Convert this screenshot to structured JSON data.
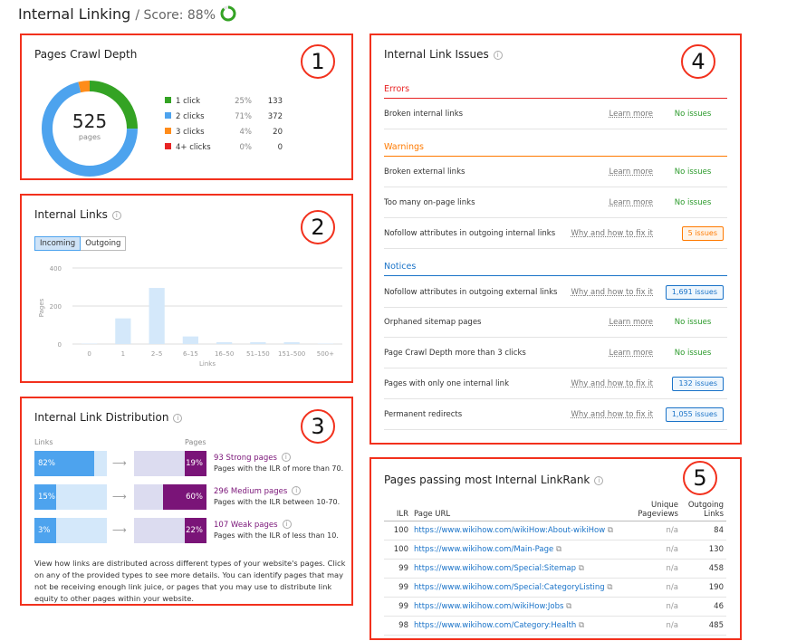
{
  "header": {
    "title": "Internal Linking",
    "score": "/ Score: 88%",
    "score_value": 88
  },
  "crawl": {
    "title": "Pages Crawl Depth",
    "marker": "1",
    "total": "525",
    "total_label": "pages",
    "items": [
      {
        "label": "1 click",
        "pct": "25%",
        "count": "133",
        "color": "#34a324",
        "value": 25
      },
      {
        "label": "2 clicks",
        "pct": "71%",
        "count": "372",
        "color": "#4da3ee",
        "value": 71
      },
      {
        "label": "3 clicks",
        "pct": "4%",
        "count": "20",
        "color": "#ff8c1a",
        "value": 4
      },
      {
        "label": "4+ clicks",
        "pct": "0%",
        "count": "0",
        "color": "#e82424",
        "value": 0
      }
    ]
  },
  "links": {
    "title": "Internal Links",
    "marker": "2",
    "tabs": [
      "Incoming",
      "Outgoing"
    ],
    "chart_data": {
      "type": "bar",
      "categories": [
        "0",
        "1",
        "2–5",
        "6–15",
        "16–50",
        "51–150",
        "151–500",
        "500+"
      ],
      "values": [
        2,
        135,
        295,
        40,
        10,
        10,
        10,
        2
      ],
      "xlabel": "Links",
      "ylabel": "Pages",
      "yticks": [
        "0",
        "200",
        "400"
      ],
      "ylim": [
        0,
        400
      ],
      "grid": true,
      "color": "#d4e8fa"
    }
  },
  "dist": {
    "title": "Internal Link Distribution",
    "marker": "3",
    "links_label": "Links",
    "pages_label": "Pages",
    "rows": [
      {
        "links": "82%",
        "links_v": 82,
        "pages": "19%",
        "pages_v": 19,
        "title": "93 Strong pages",
        "desc": "Pages with the ILR of more than 70."
      },
      {
        "links": "15%",
        "links_v": 15,
        "pages": "60%",
        "pages_v": 60,
        "title": "296 Medium pages",
        "desc": "Pages with the ILR between 10-70."
      },
      {
        "links": "3%",
        "links_v": 3,
        "pages": "22%",
        "pages_v": 22,
        "title": "107 Weak pages",
        "desc": "Pages with the ILR of less than 10."
      }
    ],
    "text": "View how links are distributed across different types of your website's pages. Click on any of the provided types to see more details. You can identify pages that may not be receiving enough link juice, or pages that you may use to distribute link equity to other pages within your website."
  },
  "issues": {
    "title": "Internal Link Issues",
    "marker": "4",
    "errors": "Errors",
    "warnings": "Warnings",
    "notices": "Notices",
    "rows": [
      {
        "label": "Broken internal links",
        "link": "Learn more",
        "status": "No issues"
      },
      {
        "label": "Broken external links",
        "link": "Learn more",
        "status": "No issues"
      },
      {
        "label": "Too many on-page links",
        "link": "Learn more",
        "status": "No issues"
      },
      {
        "label": "Nofollow attributes in outgoing internal links",
        "link": "Why and how to fix it",
        "status": "5 issues"
      },
      {
        "label": "Nofollow attributes in outgoing external links",
        "link": "Why and how to fix it",
        "status": "1,691 issues"
      },
      {
        "label": "Orphaned sitemap pages",
        "link": "Learn more",
        "status": "No issues"
      },
      {
        "label": "Page Crawl Depth more than 3 clicks",
        "link": "Learn more",
        "status": "No issues"
      },
      {
        "label": "Pages with only one internal link",
        "link": "Why and how to fix it",
        "status": "132 issues"
      },
      {
        "label": "Permanent redirects",
        "link": "Why and how to fix it",
        "status": "1,055 issues"
      }
    ]
  },
  "ilr": {
    "title": "Pages passing most Internal LinkRank",
    "marker": "5",
    "cols": [
      "ILR",
      "Page URL",
      "Unique Pageviews",
      "Outgoing Links"
    ],
    "rows": [
      [
        "100",
        "https://www.wikihow.com/wikiHow:About-wikiHow",
        "n/a",
        "84"
      ],
      [
        "100",
        "https://www.wikihow.com/Main-Page",
        "n/a",
        "130"
      ],
      [
        "99",
        "https://www.wikihow.com/Special:Sitemap",
        "n/a",
        "458"
      ],
      [
        "99",
        "https://www.wikihow.com/Special:CategoryListing",
        "n/a",
        "190"
      ],
      [
        "99",
        "https://www.wikihow.com/wikiHow:Jobs",
        "n/a",
        "46"
      ],
      [
        "98",
        "https://www.wikihow.com/Category:Health",
        "n/a",
        "485"
      ]
    ]
  }
}
